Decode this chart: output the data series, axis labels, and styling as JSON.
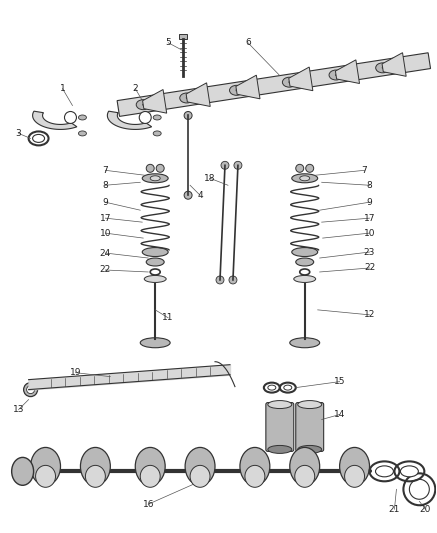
{
  "bg_color": "#ffffff",
  "lc": "#555555",
  "lc_dark": "#333333",
  "fc_light": "#d8d8d8",
  "fc_mid": "#b8b8b8",
  "fc_dark": "#888888",
  "label_fontsize": 6.5,
  "label_color": "#222222",
  "fig_width": 4.37,
  "fig_height": 5.33,
  "dpi": 100
}
